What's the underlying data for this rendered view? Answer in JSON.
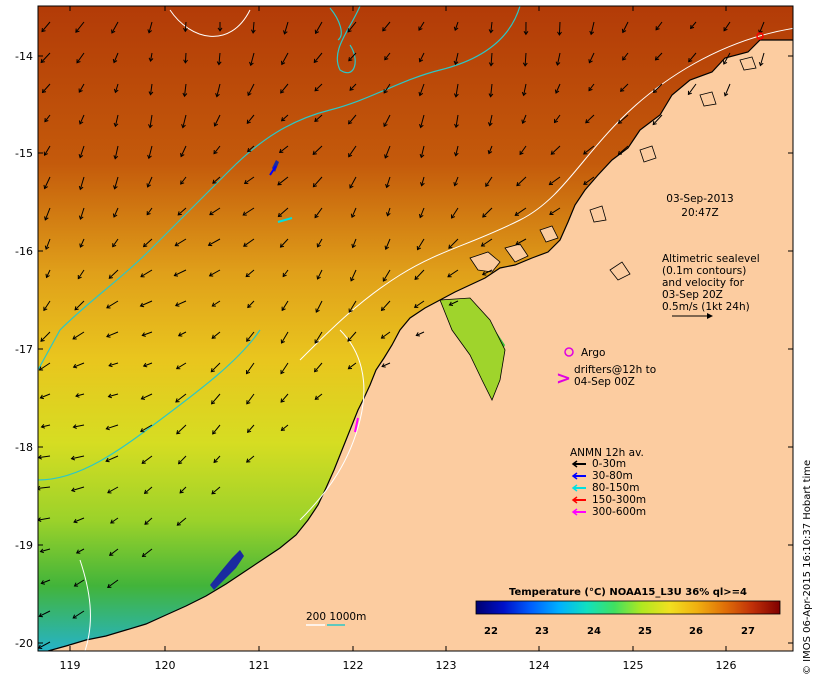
{
  "map": {
    "lon_ticks": [
      "119",
      "120",
      "121",
      "122",
      "123",
      "124",
      "125",
      "126"
    ],
    "lat_ticks": [
      "-14",
      "-15",
      "-16",
      "-17",
      "-18",
      "-19",
      "-20"
    ],
    "colors": {
      "land": "#fccca0",
      "sst_warm": "#b33a06",
      "sst_mid": "#e6a21a",
      "sst_cool": "#d8e022",
      "sst_green": "#3eb03c",
      "sst_cold": "#22b4e8",
      "contour_white": "#ffffff",
      "contour_cyan": "#2bc7c7"
    }
  },
  "annotations": {
    "date_line1": "03-Sep-2013",
    "date_line2": "20:47Z",
    "alt_lines": [
      "Altimetric sealevel",
      "(0.1m contours)",
      "and velocity for",
      "03-Sep 20Z",
      "0.5m/s (1kt 24h)"
    ],
    "argo_label": "Argo",
    "drifter_line1": "drifters@12h to",
    "drifter_line2": "04-Sep 00Z",
    "drifter_symbol": ">"
  },
  "anmn_legend": {
    "title": "ANMN 12h av.",
    "items": [
      {
        "label": "0-30m",
        "color": "#000000"
      },
      {
        "label": "30-80m",
        "color": "#0000ff"
      },
      {
        "label": "80-150m",
        "color": "#00e0e0"
      },
      {
        "label": "150-300m",
        "color": "#ff0000"
      },
      {
        "label": "300-600m",
        "color": "#ff00ff"
      }
    ]
  },
  "depth_legend": {
    "label": "200  1000m",
    "colors": [
      "#ffffff",
      "#2bc7c7"
    ]
  },
  "colorbar": {
    "title": "Temperature (°C) NOAA15_L3U 36% ql>=4",
    "ticks": [
      "22",
      "23",
      "24",
      "25",
      "26",
      "27"
    ],
    "colors": [
      "#000070",
      "#0010c8",
      "#0060ff",
      "#00b0ff",
      "#10e0c0",
      "#40e060",
      "#b0e820",
      "#f0e020",
      "#f0b010",
      "#e07008",
      "#c03008",
      "#800000"
    ]
  },
  "credit": "© IMOS 06-Apr-2015 16:10:37 Hobart time"
}
